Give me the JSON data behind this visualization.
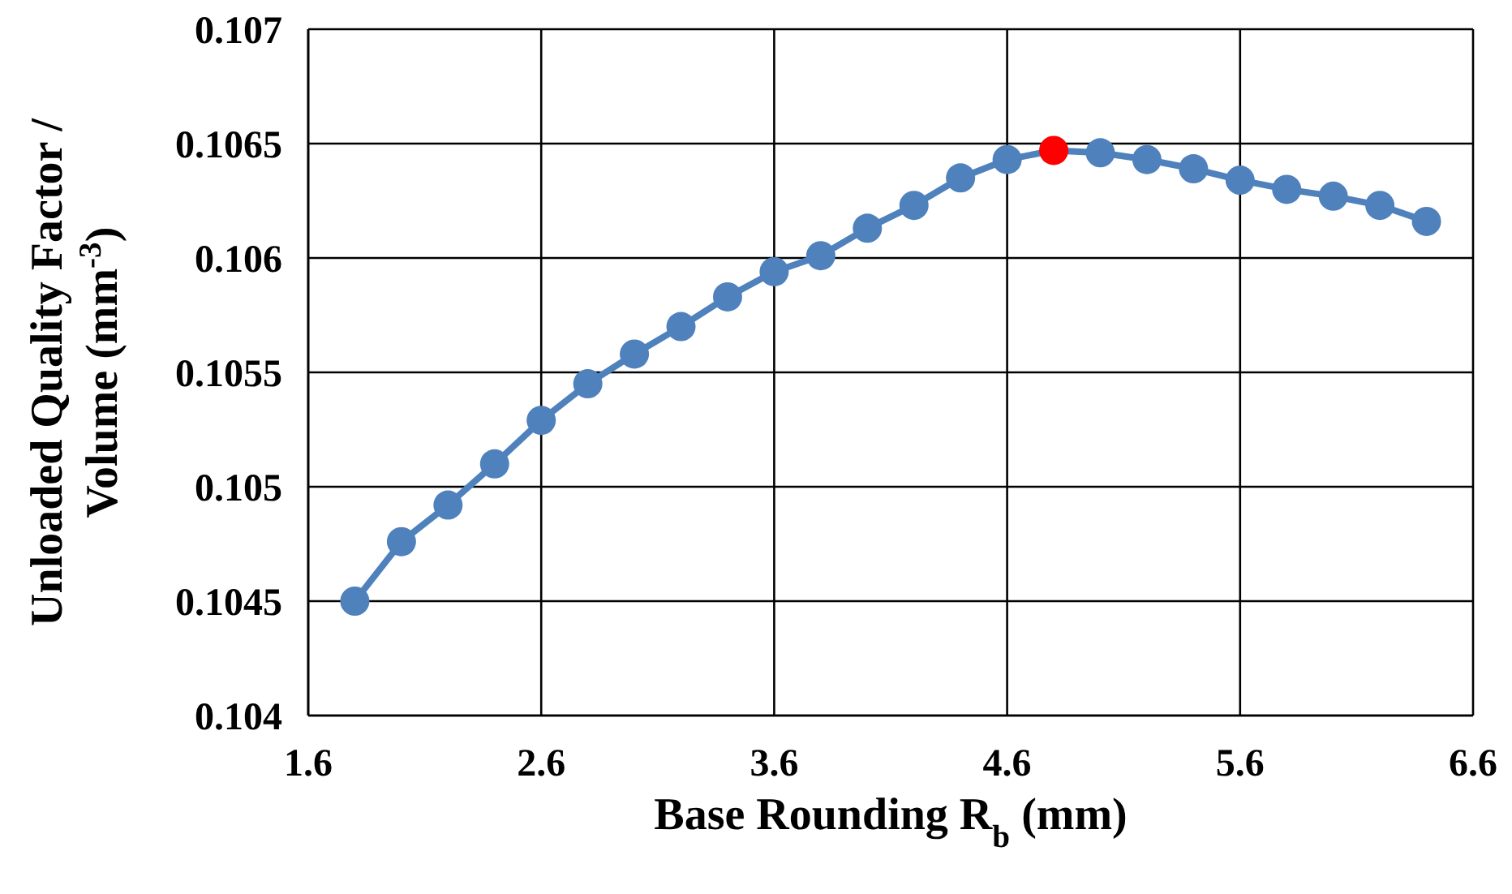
{
  "chart_data": {
    "type": "line",
    "xlabel": "Base Rounding R$_{b}$ (mm)",
    "ylabel": "Unloaded Quality Factor / Volume (mm$^{-3}$)",
    "x": [
      1.8,
      2.0,
      2.2,
      2.4,
      2.6,
      2.8,
      3.0,
      3.2,
      3.4,
      3.6,
      3.8,
      4.0,
      4.2,
      4.4,
      4.6,
      4.8,
      5.0,
      5.2,
      5.4,
      5.6,
      5.8,
      6.0,
      6.2,
      6.4
    ],
    "series": [
      {
        "color": "#4f81bd",
        "values": [
          0.1045,
          0.10476,
          0.10492,
          0.1051,
          0.10529,
          0.10545,
          0.10558,
          0.1057,
          0.10583,
          0.10594,
          0.10601,
          0.10613,
          0.10623,
          0.10635,
          0.10643,
          0.10647,
          0.10646,
          0.10643,
          0.10639,
          0.10634,
          0.1063,
          0.10627,
          0.10623,
          0.10616
        ],
        "colors": [
          "#4f81bd",
          "#4f81bd",
          "#4f81bd",
          "#4f81bd",
          "#4f81bd",
          "#4f81bd",
          "#4f81bd",
          "#4f81bd",
          "#4f81bd",
          "#4f81bd",
          "#4f81bd",
          "#4f81bd",
          "#4f81bd",
          "#4f81bd",
          "#4f81bd",
          "#ff0000",
          "#4f81bd",
          "#4f81bd",
          "#4f81bd",
          "#4f81bd",
          "#4f81bd",
          "#4f81bd",
          "#4f81bd",
          "#4f81bd"
        ]
      }
    ],
    "xlim": [
      1.6,
      6.6
    ],
    "xticks": [
      1.6,
      2.6,
      3.6,
      4.6,
      5.6,
      6.6
    ],
    "ylim": [
      0.104,
      0.107
    ],
    "yticks": [
      0.104,
      0.1045,
      0.105,
      0.1055,
      0.106,
      0.1065,
      0.107
    ],
    "grid": true,
    "marker": "circle"
  }
}
